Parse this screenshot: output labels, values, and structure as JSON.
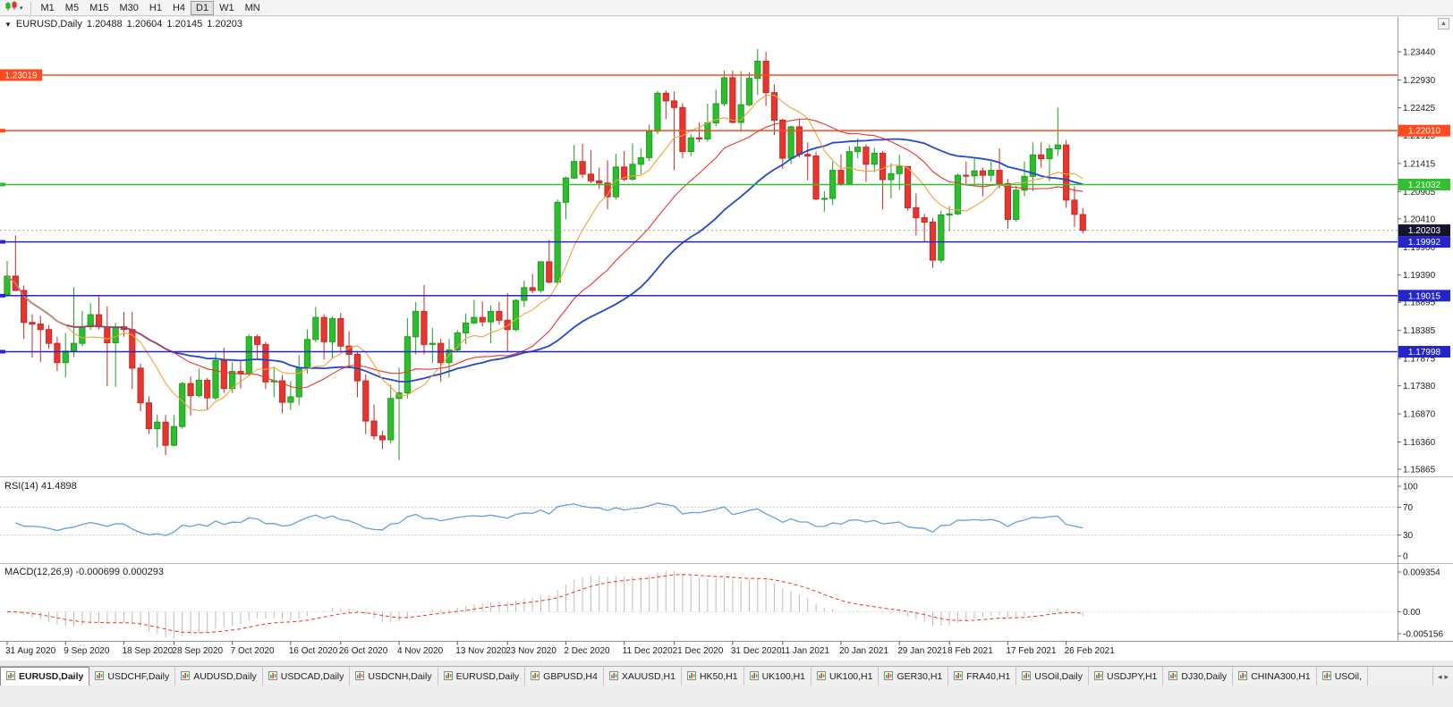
{
  "toolbar": {
    "timeframes": [
      "M1",
      "M5",
      "M15",
      "M30",
      "H1",
      "H4",
      "D1",
      "W1",
      "MN"
    ],
    "active": "D1"
  },
  "icons": {
    "symbol_dropdown": "▼",
    "dropdown_arrow": "▾",
    "scale_up": "▲",
    "tab_scroll_left": "◂",
    "tab_scroll_right": "▸"
  },
  "quote": {
    "symbol": "EURUSD,Daily",
    "open": "1.20488",
    "high": "1.20604",
    "low": "1.20145",
    "close": "1.20203"
  },
  "indicators": {
    "rsi": {
      "label": "RSI(14) 41.4898",
      "axis": [
        "100",
        "70",
        "30",
        "0"
      ],
      "levels": [
        70,
        30
      ],
      "range": [
        0,
        100
      ]
    },
    "macd": {
      "label": "MACD(12,26,9) -0.000699 0.000293",
      "axis": [
        "0.009354",
        "0.00",
        "-0.005156"
      ],
      "range": [
        -0.005156,
        0.009354
      ]
    }
  },
  "price_axis": {
    "ticks": [
      "1.23440",
      "1.22930",
      "1.22425",
      "1.21925",
      "1.21415",
      "1.20905",
      "1.20410",
      "1.19900",
      "1.19390",
      "1.18895",
      "1.18385",
      "1.17875",
      "1.17380",
      "1.16870",
      "1.16360",
      "1.15865"
    ]
  },
  "time_axis": {
    "items": [
      {
        "i": 0,
        "label": "31 Aug 2020"
      },
      {
        "i": 7,
        "label": "9 Sep 2020"
      },
      {
        "i": 14,
        "label": "18 Sep 2020"
      },
      {
        "i": 20,
        "label": "28 Sep 2020"
      },
      {
        "i": 27,
        "label": "7 Oct 2020"
      },
      {
        "i": 34,
        "label": "16 Oct 2020"
      },
      {
        "i": 40,
        "label": "26 Oct 2020"
      },
      {
        "i": 47,
        "label": "4 Nov 2020"
      },
      {
        "i": 54,
        "label": "13 Nov 2020"
      },
      {
        "i": 60,
        "label": "23 Nov 2020"
      },
      {
        "i": 67,
        "label": "2 Dec 2020"
      },
      {
        "i": 74,
        "label": "11 Dec 2020"
      },
      {
        "i": 80,
        "label": "21 Dec 2020"
      },
      {
        "i": 87,
        "label": "31 Dec 2020"
      },
      {
        "i": 93,
        "label": "11 Jan 2021"
      },
      {
        "i": 100,
        "label": "20 Jan 2021"
      },
      {
        "i": 107,
        "label": "29 Jan 2021"
      },
      {
        "i": 113,
        "label": "8 Feb 2021"
      },
      {
        "i": 120,
        "label": "17 Feb 2021"
      },
      {
        "i": 127,
        "label": "26 Feb 2021"
      }
    ]
  },
  "hlines": [
    {
      "price": 1.23019,
      "label": "1.23019",
      "color": "#ff4a1e",
      "label_side": "left"
    },
    {
      "price": 1.2201,
      "label": "1.22010",
      "color": "#ff4a1e",
      "label_side": "right"
    },
    {
      "price": 1.21032,
      "label": "1.21032",
      "color": "#2fc12f",
      "label_side": "right"
    },
    {
      "price": 1.19992,
      "label": "1.19992",
      "color": "#2525cc",
      "label_side": "right"
    },
    {
      "price": 1.19015,
      "label": "1.19015",
      "color": "#2525cc",
      "label_side": "right"
    },
    {
      "price": 1.17998,
      "label": "1.17998",
      "color": "#2525cc",
      "label_side": "right"
    }
  ],
  "current_price": {
    "value": 1.20203,
    "label": "1.20203",
    "badge_color": "#14142e"
  },
  "chart_data": {
    "type": "candlestick",
    "symbol": "EURUSD",
    "timeframe": "Daily",
    "title": "EURUSD,Daily",
    "y_range": [
      1.15735,
      1.24073
    ],
    "colors": {
      "up": "#2dbe2d",
      "up_border": "#1e9e1e",
      "down": "#e8352e",
      "down_border": "#c42a25",
      "ma_fast": "#f2a33c",
      "ma_mid": "#e8352e",
      "ma_slow": "#2447ce",
      "rsi": "#64a0dc",
      "macd_hist": "#bdbdbd",
      "macd_signal": "#e8352e"
    },
    "ma_lines": [
      {
        "name": "MA fast",
        "period": 8,
        "color": "#f2a33c"
      },
      {
        "name": "MA mid",
        "period": 21,
        "color": "#e8352e"
      },
      {
        "name": "MA slow",
        "period": 34,
        "color": "#2447ce"
      }
    ],
    "candles": [
      [
        1.1903,
        1.1965,
        1.19,
        1.1937
      ],
      [
        1.1937,
        1.2011,
        1.193,
        1.1911
      ],
      [
        1.1911,
        1.192,
        1.1823,
        1.1853
      ],
      [
        1.1853,
        1.1868,
        1.1789,
        1.185
      ],
      [
        1.185,
        1.1865,
        1.1781,
        1.184
      ],
      [
        1.184,
        1.1848,
        1.1805,
        1.1815
      ],
      [
        1.1815,
        1.1827,
        1.1765,
        1.178
      ],
      [
        1.178,
        1.1834,
        1.1753,
        1.1801
      ],
      [
        1.1801,
        1.1917,
        1.179,
        1.1815
      ],
      [
        1.1815,
        1.1874,
        1.181,
        1.1845
      ],
      [
        1.1845,
        1.1888,
        1.1839,
        1.1867
      ],
      [
        1.1867,
        1.19,
        1.184,
        1.1845
      ],
      [
        1.1845,
        1.1882,
        1.1737,
        1.1816
      ],
      [
        1.1816,
        1.1852,
        1.1736,
        1.1845
      ],
      [
        1.1845,
        1.1872,
        1.1827,
        1.184
      ],
      [
        1.184,
        1.1872,
        1.1732,
        1.177
      ],
      [
        1.177,
        1.1778,
        1.1692,
        1.1707
      ],
      [
        1.1707,
        1.1719,
        1.1651,
        1.166
      ],
      [
        1.166,
        1.1686,
        1.1626,
        1.1672
      ],
      [
        1.1672,
        1.1685,
        1.1612,
        1.163
      ],
      [
        1.163,
        1.1685,
        1.1628,
        1.1664
      ],
      [
        1.1664,
        1.1745,
        1.166,
        1.1742
      ],
      [
        1.1742,
        1.1755,
        1.1684,
        1.172
      ],
      [
        1.172,
        1.1769,
        1.1717,
        1.1748
      ],
      [
        1.1748,
        1.1752,
        1.1695,
        1.1716
      ],
      [
        1.1716,
        1.1797,
        1.1712,
        1.1784
      ],
      [
        1.1784,
        1.1807,
        1.1725,
        1.1733
      ],
      [
        1.1733,
        1.1781,
        1.1725,
        1.1764
      ],
      [
        1.1764,
        1.1782,
        1.1733,
        1.176
      ],
      [
        1.176,
        1.1831,
        1.1755,
        1.1827
      ],
      [
        1.1827,
        1.1831,
        1.1785,
        1.1813
      ],
      [
        1.1813,
        1.1818,
        1.1732,
        1.1745
      ],
      [
        1.1745,
        1.1772,
        1.1717,
        1.1747
      ],
      [
        1.1747,
        1.1758,
        1.1688,
        1.1708
      ],
      [
        1.1708,
        1.1746,
        1.1694,
        1.1718
      ],
      [
        1.1718,
        1.1794,
        1.1703,
        1.177
      ],
      [
        1.177,
        1.184,
        1.176,
        1.1822
      ],
      [
        1.1822,
        1.1881,
        1.1817,
        1.1862
      ],
      [
        1.1862,
        1.1868,
        1.1786,
        1.1818
      ],
      [
        1.1818,
        1.1864,
        1.1787,
        1.186
      ],
      [
        1.186,
        1.187,
        1.18,
        1.181
      ],
      [
        1.181,
        1.1837,
        1.177,
        1.1795
      ],
      [
        1.1795,
        1.18,
        1.1717,
        1.1747
      ],
      [
        1.1747,
        1.1759,
        1.165,
        1.1674
      ],
      [
        1.1674,
        1.1704,
        1.164,
        1.1647
      ],
      [
        1.1647,
        1.1656,
        1.1623,
        1.164
      ],
      [
        1.164,
        1.174,
        1.1633,
        1.1715
      ],
      [
        1.1715,
        1.1771,
        1.1603,
        1.1725
      ],
      [
        1.1725,
        1.1861,
        1.1715,
        1.1827
      ],
      [
        1.1827,
        1.189,
        1.1795,
        1.1873
      ],
      [
        1.1873,
        1.1921,
        1.1795,
        1.1813
      ],
      [
        1.1813,
        1.1843,
        1.1779,
        1.1815
      ],
      [
        1.1815,
        1.1823,
        1.1745,
        1.178
      ],
      [
        1.178,
        1.1823,
        1.1753,
        1.1803
      ],
      [
        1.1803,
        1.1839,
        1.1799,
        1.1834
      ],
      [
        1.1834,
        1.1869,
        1.1814,
        1.1852
      ],
      [
        1.1852,
        1.1894,
        1.185,
        1.1862
      ],
      [
        1.1862,
        1.1891,
        1.1846,
        1.1854
      ],
      [
        1.1854,
        1.1884,
        1.1815,
        1.1873
      ],
      [
        1.1873,
        1.189,
        1.1849,
        1.1857
      ],
      [
        1.1857,
        1.1906,
        1.18,
        1.184
      ],
      [
        1.184,
        1.1895,
        1.1837,
        1.1893
      ],
      [
        1.1893,
        1.1929,
        1.1881,
        1.1916
      ],
      [
        1.1916,
        1.1941,
        1.1906,
        1.1911
      ],
      [
        1.1911,
        1.1964,
        1.1907,
        1.1963
      ],
      [
        1.1963,
        1.2003,
        1.1924,
        1.1926
      ],
      [
        1.1926,
        1.2076,
        1.1922,
        1.2071
      ],
      [
        1.2071,
        1.2118,
        1.204,
        1.2115
      ],
      [
        1.2115,
        1.2175,
        1.2113,
        1.2145
      ],
      [
        1.2145,
        1.2177,
        1.2115,
        1.2122
      ],
      [
        1.2122,
        1.2166,
        1.2106,
        1.211
      ],
      [
        1.211,
        1.2134,
        1.2095,
        1.2106
      ],
      [
        1.2106,
        1.2147,
        1.2058,
        1.2081
      ],
      [
        1.2081,
        1.2159,
        1.2076,
        1.2135
      ],
      [
        1.2135,
        1.2164,
        1.2109,
        1.2113
      ],
      [
        1.2113,
        1.2178,
        1.211,
        1.214
      ],
      [
        1.214,
        1.2169,
        1.2122,
        1.2152
      ],
      [
        1.2152,
        1.2212,
        1.2146,
        1.22
      ],
      [
        1.22,
        1.2273,
        1.2195,
        1.2269
      ],
      [
        1.2269,
        1.2274,
        1.2222,
        1.2255
      ],
      [
        1.2255,
        1.2272,
        1.2129,
        1.2243
      ],
      [
        1.2243,
        1.2251,
        1.2151,
        1.2163
      ],
      [
        1.2163,
        1.2195,
        1.2155,
        1.2188
      ],
      [
        1.2188,
        1.2216,
        1.218,
        1.2186
      ],
      [
        1.2186,
        1.225,
        1.2181,
        1.2215
      ],
      [
        1.2215,
        1.2275,
        1.2209,
        1.225
      ],
      [
        1.225,
        1.231,
        1.2245,
        1.2297
      ],
      [
        1.2297,
        1.231,
        1.2214,
        1.2216
      ],
      [
        1.2216,
        1.2309,
        1.2199,
        1.2248
      ],
      [
        1.2248,
        1.2307,
        1.2245,
        1.2296
      ],
      [
        1.2296,
        1.2349,
        1.2266,
        1.2327
      ],
      [
        1.2327,
        1.2344,
        1.2246,
        1.227
      ],
      [
        1.227,
        1.2285,
        1.2193,
        1.222
      ],
      [
        1.222,
        1.2223,
        1.2132,
        1.2151
      ],
      [
        1.2151,
        1.221,
        1.214,
        1.2208
      ],
      [
        1.2208,
        1.2223,
        1.2152,
        1.2158
      ],
      [
        1.2158,
        1.218,
        1.2111,
        1.2155
      ],
      [
        1.2155,
        1.2163,
        1.2075,
        1.2077
      ],
      [
        1.2077,
        1.2091,
        1.2054,
        1.2078
      ],
      [
        1.2078,
        1.2145,
        1.2066,
        1.2129
      ],
      [
        1.2129,
        1.2158,
        1.2101,
        1.2105
      ],
      [
        1.2105,
        1.2173,
        1.2103,
        1.2163
      ],
      [
        1.2163,
        1.2187,
        1.2151,
        1.2171
      ],
      [
        1.2171,
        1.2176,
        1.2108,
        1.214
      ],
      [
        1.214,
        1.217,
        1.2126,
        1.216
      ],
      [
        1.216,
        1.2164,
        1.2058,
        1.2112
      ],
      [
        1.2112,
        1.2142,
        1.2078,
        1.2123
      ],
      [
        1.2123,
        1.2157,
        1.2093,
        1.2136
      ],
      [
        1.2136,
        1.2136,
        1.2056,
        1.2061
      ],
      [
        1.2061,
        1.2087,
        1.2011,
        1.2043
      ],
      [
        1.2043,
        1.205,
        1.1999,
        1.2035
      ],
      [
        1.2035,
        1.2043,
        1.1952,
        1.1966
      ],
      [
        1.1966,
        1.2056,
        1.1961,
        1.2048
      ],
      [
        1.2048,
        1.2064,
        1.2019,
        1.205
      ],
      [
        1.205,
        1.2123,
        1.2048,
        1.212
      ],
      [
        1.212,
        1.2145,
        1.2103,
        1.2119
      ],
      [
        1.2119,
        1.215,
        1.2102,
        1.2128
      ],
      [
        1.2128,
        1.2134,
        1.2082,
        1.212
      ],
      [
        1.212,
        1.2145,
        1.2109,
        1.2129
      ],
      [
        1.2129,
        1.2169,
        1.2096,
        1.2105
      ],
      [
        1.2105,
        1.2113,
        1.2023,
        1.204
      ],
      [
        1.204,
        1.2101,
        1.2036,
        1.2093
      ],
      [
        1.2093,
        1.2145,
        1.2082,
        1.2118
      ],
      [
        1.2118,
        1.218,
        1.2091,
        1.2157
      ],
      [
        1.2157,
        1.218,
        1.2134,
        1.215
      ],
      [
        1.215,
        1.2176,
        1.2109,
        1.2168
      ],
      [
        1.2168,
        1.2243,
        1.2155,
        1.2175
      ],
      [
        1.2175,
        1.2184,
        1.2061,
        1.2075
      ],
      [
        1.2075,
        1.21,
        1.2026,
        1.2049
      ],
      [
        1.20488,
        1.20604,
        1.20145,
        1.20203
      ]
    ]
  },
  "tabs": {
    "items": [
      {
        "label": "EURUSD,Daily",
        "active": true
      },
      {
        "label": "USDCHF,Daily"
      },
      {
        "label": "AUDUSD,Daily"
      },
      {
        "label": "USDCAD,Daily"
      },
      {
        "label": "USDCNH,Daily"
      },
      {
        "label": "EURUSD,Daily"
      },
      {
        "label": "GBPUSD,H4"
      },
      {
        "label": "XAUUSD,H1"
      },
      {
        "label": "HK50,H1"
      },
      {
        "label": "UK100,H1"
      },
      {
        "label": "UK100,H1"
      },
      {
        "label": "GER30,H1"
      },
      {
        "label": "FRA40,H1"
      },
      {
        "label": "USOil,Daily"
      },
      {
        "label": "USDJPY,H1"
      },
      {
        "label": "DJ30,Daily"
      },
      {
        "label": "CHINA300,H1"
      },
      {
        "label": "USOil,"
      }
    ]
  }
}
